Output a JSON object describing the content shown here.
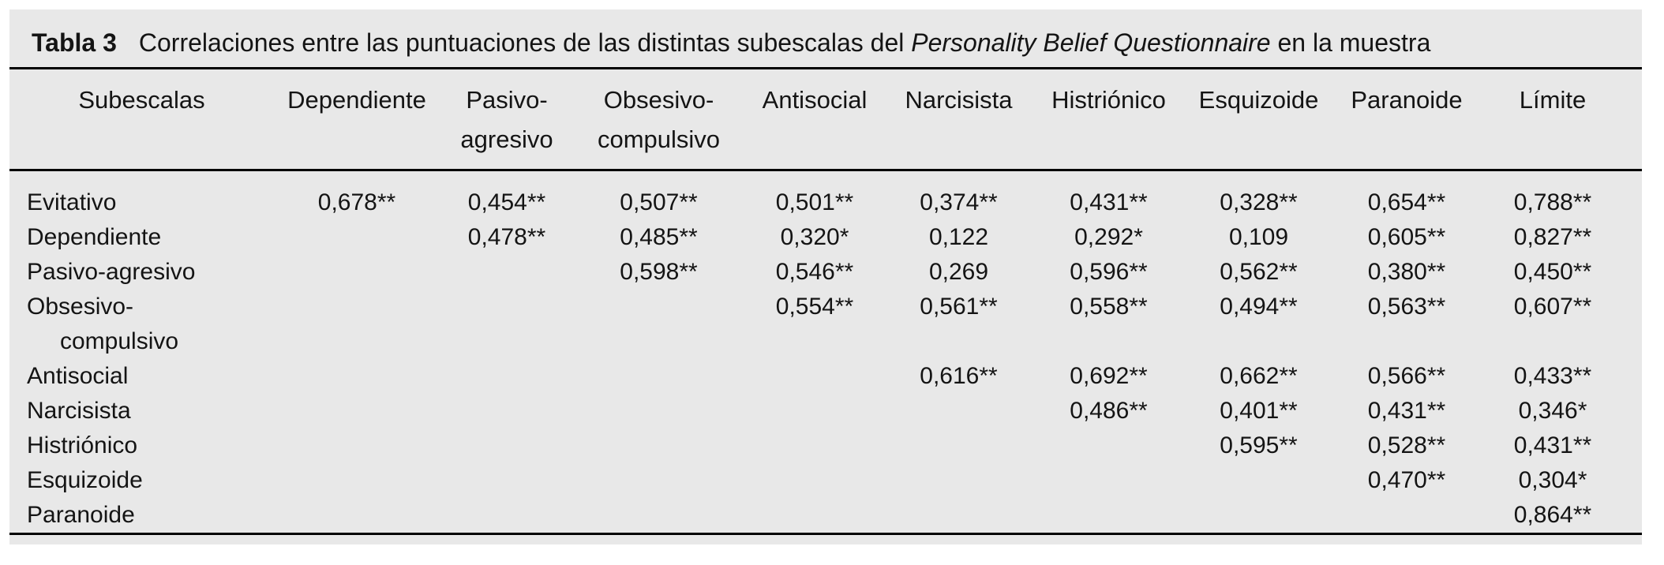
{
  "caption": {
    "label": "Tabla 3",
    "text": "Correlaciones entre las puntuaciones de las distintas subescalas del",
    "italic": "Personality Belief Questionnaire",
    "suffix": "en la muestra"
  },
  "colors": {
    "card_background": "#e8e8e8",
    "text": "#141414",
    "rule": "#000000"
  },
  "chart_data": {
    "type": "table",
    "title": "Tabla 3  Correlaciones entre las puntuaciones de las distintas subescalas del Personality Belief Questionnaire en la muestra",
    "columns": [
      "Subescalas",
      "Dependiente",
      "Pasivo-\nagresivo",
      "Obsesivo-\ncompulsivo",
      "Antisocial",
      "Narcisista",
      "Histriónico",
      "Esquizoide",
      "Paranoide",
      "Límite"
    ],
    "rows": [
      {
        "label": "Evitativo",
        "values": [
          "0,678**",
          "0,454**",
          "0,507**",
          "0,501**",
          "0,374**",
          "0,431**",
          "0,328**",
          "0,654**",
          "0,788**"
        ]
      },
      {
        "label": "Dependiente",
        "values": [
          "",
          "0,478**",
          "0,485**",
          "0,320*",
          "0,122",
          "0,292*",
          "0,109",
          "0,605**",
          "0,827**"
        ]
      },
      {
        "label": "Pasivo-agresivo",
        "values": [
          "",
          "",
          "0,598**",
          "0,546**",
          "0,269",
          "0,596**",
          "0,562**",
          "0,380**",
          "0,450**"
        ]
      },
      {
        "label": "Obsesivo-\ncompulsivo",
        "values": [
          "",
          "",
          "",
          "0,554**",
          "0,561**",
          "0,558**",
          "0,494**",
          "0,563**",
          "0,607**"
        ]
      },
      {
        "label": "Antisocial",
        "values": [
          "",
          "",
          "",
          "",
          "0,616**",
          "0,692**",
          "0,662**",
          "0,566**",
          "0,433**"
        ]
      },
      {
        "label": "Narcisista",
        "values": [
          "",
          "",
          "",
          "",
          "",
          "0,486**",
          "0,401**",
          "0,431**",
          "0,346*"
        ]
      },
      {
        "label": "Histriónico",
        "values": [
          "",
          "",
          "",
          "",
          "",
          "",
          "0,595**",
          "0,528**",
          "0,431**"
        ]
      },
      {
        "label": "Esquizoide",
        "values": [
          "",
          "",
          "",
          "",
          "",
          "",
          "",
          "0,470**",
          "0,304*"
        ]
      },
      {
        "label": "Paranoide",
        "values": [
          "",
          "",
          "",
          "",
          "",
          "",
          "",
          "",
          "0,864**"
        ]
      }
    ]
  }
}
